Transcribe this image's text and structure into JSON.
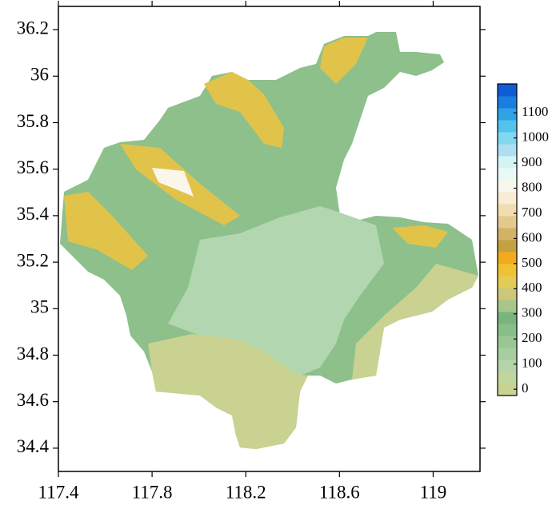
{
  "map": {
    "xlim": [
      117.4,
      119.2
    ],
    "ylim": [
      34.3,
      36.3
    ],
    "xticks": [
      117.4,
      117.8,
      118.2,
      118.6,
      119
    ],
    "yticks": [
      34.4,
      34.6,
      34.8,
      35,
      35.2,
      35.4,
      35.6,
      35.8,
      36,
      36.2
    ],
    "colorbar": {
      "lim": [
        -25,
        1215
      ],
      "ticks": [
        0,
        100,
        200,
        300,
        400,
        500,
        600,
        700,
        800,
        900,
        1000,
        1100
      ],
      "colors": [
        "#c9d290",
        "#c0d69c",
        "#b4d4ac",
        "#a6cea0",
        "#98c794",
        "#88be88",
        "#79b37d",
        "#a8c68a",
        "#cdc879",
        "#e3cc56",
        "#f0c233",
        "#f2ab1f",
        "#c4a23f",
        "#d3b266",
        "#e4c98d",
        "#f2dcb2",
        "#f8ecd4",
        "#f6f8ec",
        "#e9f9f5",
        "#d3f4f5",
        "#addef2",
        "#82d8ee",
        "#52c4ec",
        "#2ea3e6",
        "#1a7de0",
        "#0f5cd6"
      ]
    }
  }
}
